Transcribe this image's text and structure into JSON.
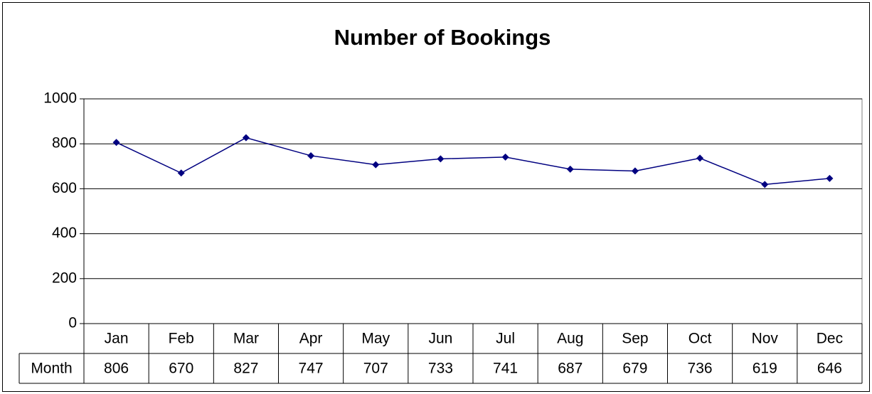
{
  "chart_data": {
    "type": "line",
    "title": "Number of Bookings",
    "categories": [
      "Jan",
      "Feb",
      "Mar",
      "Apr",
      "May",
      "Jun",
      "Jul",
      "Aug",
      "Sep",
      "Oct",
      "Nov",
      "Dec"
    ],
    "series": [
      {
        "name": "Month",
        "color": "#000080",
        "values": [
          806,
          670,
          827,
          747,
          707,
          733,
          741,
          687,
          679,
          736,
          619,
          646
        ]
      }
    ],
    "ylim": [
      0,
      1000
    ],
    "yticks": [
      0,
      200,
      400,
      600,
      800,
      1000
    ],
    "grid": true
  }
}
